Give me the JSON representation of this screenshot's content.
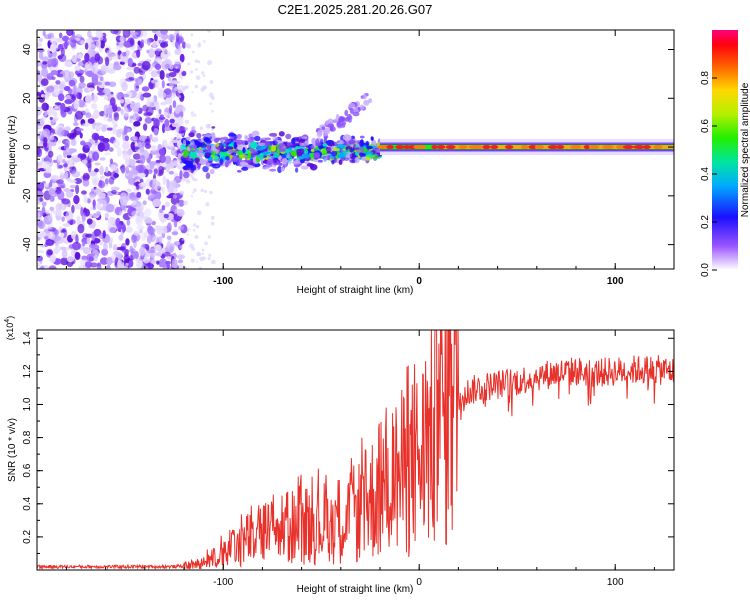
{
  "title": "C2E1.2025.281.20.26.G07",
  "chart_data": [
    {
      "type": "heatmap",
      "name": "spectrogram",
      "xlabel": "Height of straight line (km)",
      "ylabel": "Frequency (Hz)",
      "xlim": [
        -195,
        130
      ],
      "ylim": [
        -50,
        48
      ],
      "xticks": [
        -100,
        0,
        100
      ],
      "yticks": [
        -40,
        -20,
        0,
        20,
        40
      ],
      "signal_band": {
        "noise_region_x": [
          -195,
          -120
        ],
        "scatter_region_x": [
          -120,
          -20
        ],
        "ridge_x": [
          -20,
          130
        ],
        "ridge_frequency": 0
      },
      "colorbar": {
        "label": "Normalized spectral amplitude",
        "range": [
          0,
          1
        ],
        "ticks": [
          0.0,
          0.2,
          0.4,
          0.6,
          0.8
        ]
      }
    },
    {
      "type": "line",
      "name": "snr",
      "xlabel": "Height of straight line (km)",
      "ylabel": "SNR (10 * v/v)",
      "scale_label": "(x10",
      "scale_exp": "4",
      "xlim": [
        -195,
        130
      ],
      "ylim": [
        0,
        1.45
      ],
      "xticks": [
        -100,
        0,
        100
      ],
      "yticks": [
        0.2,
        0.4,
        0.6,
        0.8,
        1.0,
        1.2,
        1.4
      ],
      "series": [
        {
          "name": "SNR",
          "color": "#e8312a",
          "x": [
            -195,
            -150,
            -125,
            -115,
            -105,
            -95,
            -85,
            -75,
            -65,
            -55,
            -45,
            -35,
            -28,
            -22,
            -18,
            -14,
            -10,
            -5,
            0,
            5,
            10,
            20,
            30,
            40,
            50,
            60,
            70,
            80,
            90,
            100,
            110,
            120,
            130
          ],
          "y": [
            0.02,
            0.02,
            0.02,
            0.03,
            0.07,
            0.14,
            0.2,
            0.23,
            0.26,
            0.28,
            0.29,
            0.32,
            0.38,
            0.46,
            0.53,
            0.56,
            0.57,
            0.6,
            0.66,
            0.76,
            0.9,
            1.05,
            1.1,
            1.12,
            1.14,
            1.17,
            1.19,
            1.2,
            1.19,
            1.2,
            1.21,
            1.21,
            1.2
          ]
        }
      ]
    }
  ]
}
